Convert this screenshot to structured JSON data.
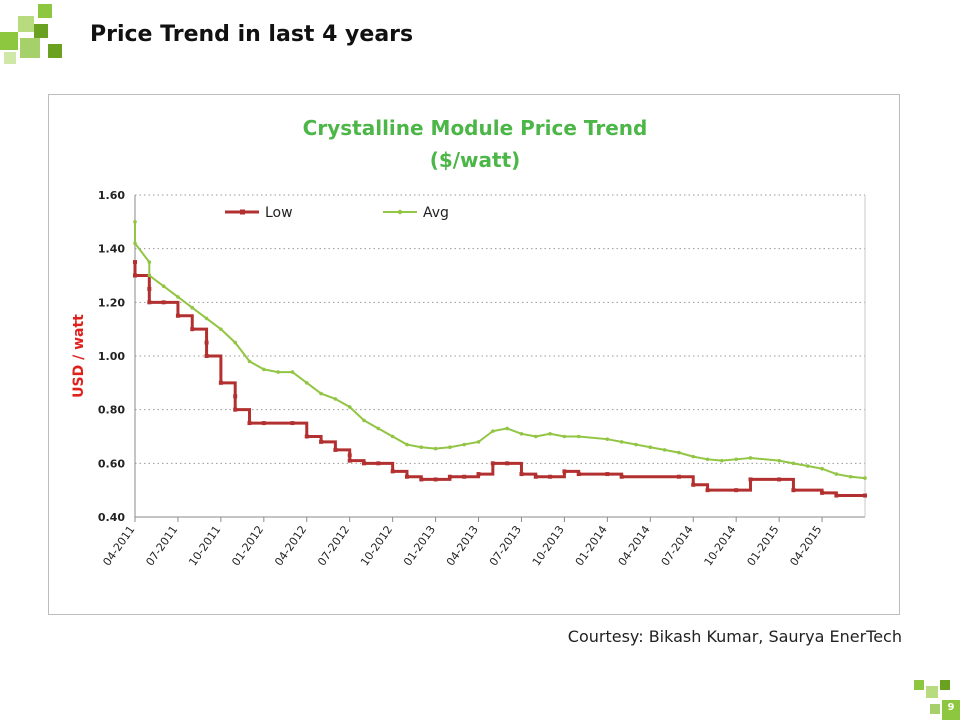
{
  "slide": {
    "title": "Price Trend in last 4 years",
    "courtesy": "Courtesy: Bikash Kumar, Saurya EnerTech",
    "page_number": "9"
  },
  "colors": {
    "accent_green": "#8dc63f",
    "dark_green": "#6aa121",
    "title_green": "#4cb648",
    "axis_label_red": "#e0201b",
    "low_series": "#b33030",
    "avg_series": "#92c544"
  },
  "icons": {
    "top_logo": "green-squares-logo",
    "corner_logo": "green-squares-logo"
  },
  "chart_data": {
    "type": "line",
    "title": "Crystalline Module Price Trend",
    "subtitle": "($/watt)",
    "xlabel": "",
    "ylabel": "USD / watt",
    "ylim": [
      0.4,
      1.6
    ],
    "yticks": [
      "0.40",
      "0.60",
      "0.80",
      "1.00",
      "1.20",
      "1.40",
      "1.60"
    ],
    "xlim": [
      "2011-04",
      "2015-07"
    ],
    "xticks": [
      "04-2011",
      "07-2011",
      "10-2011",
      "01-2012",
      "04-2012",
      "07-2012",
      "10-2012",
      "01-2013",
      "04-2013",
      "07-2013",
      "10-2013",
      "01-2014",
      "04-2014",
      "07-2014",
      "10-2014",
      "01-2015",
      "04-2015"
    ],
    "grid": "horizontal-dotted",
    "legend": "top-left",
    "series": [
      {
        "name": "Low",
        "color": "#b33030",
        "marker": "square",
        "step": true,
        "points": [
          [
            "2011-04",
            1.35
          ],
          [
            "2011-04",
            1.3
          ],
          [
            "2011-05",
            1.25
          ],
          [
            "2011-05",
            1.2
          ],
          [
            "2011-06",
            1.2
          ],
          [
            "2011-07",
            1.15
          ],
          [
            "2011-08",
            1.1
          ],
          [
            "2011-09",
            1.05
          ],
          [
            "2011-09",
            1.0
          ],
          [
            "2011-10",
            0.9
          ],
          [
            "2011-11",
            0.85
          ],
          [
            "2011-11",
            0.8
          ],
          [
            "2011-12",
            0.75
          ],
          [
            "2012-01",
            0.75
          ],
          [
            "2012-03",
            0.75
          ],
          [
            "2012-04",
            0.7
          ],
          [
            "2012-05",
            0.68
          ],
          [
            "2012-06",
            0.65
          ],
          [
            "2012-07",
            0.63
          ],
          [
            "2012-07",
            0.61
          ],
          [
            "2012-08",
            0.6
          ],
          [
            "2012-09",
            0.6
          ],
          [
            "2012-10",
            0.57
          ],
          [
            "2012-11",
            0.55
          ],
          [
            "2012-12",
            0.54
          ],
          [
            "2013-01",
            0.54
          ],
          [
            "2013-02",
            0.55
          ],
          [
            "2013-03",
            0.55
          ],
          [
            "2013-04",
            0.56
          ],
          [
            "2013-05",
            0.6
          ],
          [
            "2013-06",
            0.6
          ],
          [
            "2013-07",
            0.56
          ],
          [
            "2013-08",
            0.55
          ],
          [
            "2013-09",
            0.55
          ],
          [
            "2013-10",
            0.57
          ],
          [
            "2013-11",
            0.56
          ],
          [
            "2014-01",
            0.56
          ],
          [
            "2014-02",
            0.55
          ],
          [
            "2014-06",
            0.55
          ],
          [
            "2014-07",
            0.52
          ],
          [
            "2014-08",
            0.5
          ],
          [
            "2014-10",
            0.5
          ],
          [
            "2014-11",
            0.54
          ],
          [
            "2015-01",
            0.54
          ],
          [
            "2015-02",
            0.5
          ],
          [
            "2015-04",
            0.49
          ],
          [
            "2015-05",
            0.48
          ],
          [
            "2015-07",
            0.48
          ]
        ]
      },
      {
        "name": "Avg",
        "color": "#92c544",
        "marker": "triangle",
        "step": false,
        "points": [
          [
            "2011-04",
            1.5
          ],
          [
            "2011-04",
            1.42
          ],
          [
            "2011-05",
            1.35
          ],
          [
            "2011-05",
            1.3
          ],
          [
            "2011-06",
            1.26
          ],
          [
            "2011-07",
            1.22
          ],
          [
            "2011-08",
            1.18
          ],
          [
            "2011-09",
            1.14
          ],
          [
            "2011-10",
            1.1
          ],
          [
            "2011-11",
            1.05
          ],
          [
            "2011-12",
            0.98
          ],
          [
            "2012-01",
            0.95
          ],
          [
            "2012-02",
            0.94
          ],
          [
            "2012-03",
            0.94
          ],
          [
            "2012-04",
            0.9
          ],
          [
            "2012-05",
            0.86
          ],
          [
            "2012-06",
            0.84
          ],
          [
            "2012-07",
            0.81
          ],
          [
            "2012-08",
            0.76
          ],
          [
            "2012-09",
            0.73
          ],
          [
            "2012-10",
            0.7
          ],
          [
            "2012-11",
            0.67
          ],
          [
            "2012-12",
            0.66
          ],
          [
            "2013-01",
            0.655
          ],
          [
            "2013-02",
            0.66
          ],
          [
            "2013-03",
            0.67
          ],
          [
            "2013-04",
            0.68
          ],
          [
            "2013-05",
            0.72
          ],
          [
            "2013-06",
            0.73
          ],
          [
            "2013-07",
            0.71
          ],
          [
            "2013-08",
            0.7
          ],
          [
            "2013-09",
            0.71
          ],
          [
            "2013-10",
            0.7
          ],
          [
            "2013-11",
            0.7
          ],
          [
            "2014-01",
            0.69
          ],
          [
            "2014-02",
            0.68
          ],
          [
            "2014-03",
            0.67
          ],
          [
            "2014-04",
            0.66
          ],
          [
            "2014-05",
            0.65
          ],
          [
            "2014-06",
            0.64
          ],
          [
            "2014-07",
            0.625
          ],
          [
            "2014-08",
            0.615
          ],
          [
            "2014-09",
            0.61
          ],
          [
            "2014-10",
            0.615
          ],
          [
            "2014-11",
            0.62
          ],
          [
            "2015-01",
            0.61
          ],
          [
            "2015-02",
            0.6
          ],
          [
            "2015-03",
            0.59
          ],
          [
            "2015-04",
            0.58
          ],
          [
            "2015-05",
            0.56
          ],
          [
            "2015-06",
            0.55
          ],
          [
            "2015-07",
            0.545
          ]
        ]
      }
    ]
  }
}
